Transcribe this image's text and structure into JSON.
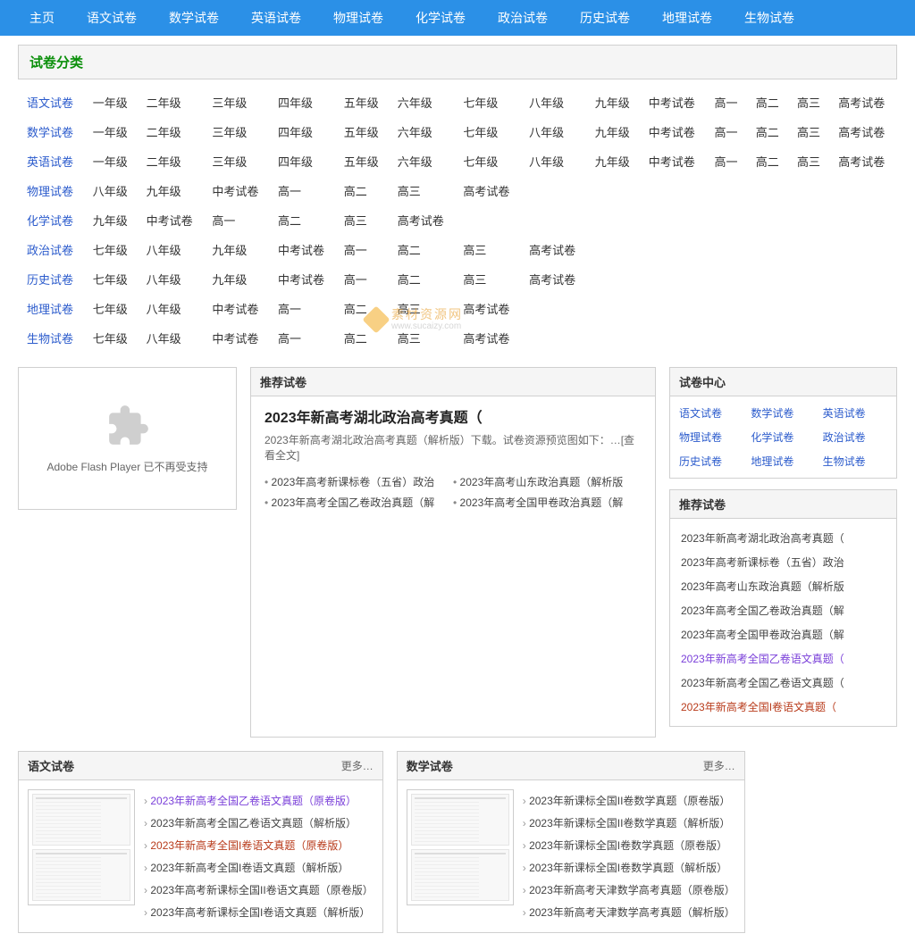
{
  "nav": [
    "主页",
    "语文试卷",
    "数学试卷",
    "英语试卷",
    "物理试卷",
    "化学试卷",
    "政治试卷",
    "历史试卷",
    "地理试卷",
    "生物试卷"
  ],
  "catTitle": "试卷分类",
  "catRows": [
    {
      "s": "语文试卷",
      "g": [
        "一年级",
        "二年级",
        "三年级",
        "四年级",
        "五年级",
        "六年级",
        "七年级",
        "八年级",
        "九年级",
        "中考试卷",
        "高一",
        "高二",
        "高三",
        "高考试卷"
      ]
    },
    {
      "s": "数学试卷",
      "g": [
        "一年级",
        "二年级",
        "三年级",
        "四年级",
        "五年级",
        "六年级",
        "七年级",
        "八年级",
        "九年级",
        "中考试卷",
        "高一",
        "高二",
        "高三",
        "高考试卷"
      ]
    },
    {
      "s": "英语试卷",
      "g": [
        "一年级",
        "二年级",
        "三年级",
        "四年级",
        "五年级",
        "六年级",
        "七年级",
        "八年级",
        "九年级",
        "中考试卷",
        "高一",
        "高二",
        "高三",
        "高考试卷"
      ]
    },
    {
      "s": "物理试卷",
      "g": [
        "八年级",
        "九年级",
        "中考试卷",
        "高一",
        "高二",
        "高三",
        "高考试卷"
      ]
    },
    {
      "s": "化学试卷",
      "g": [
        "九年级",
        "中考试卷",
        "高一",
        "高二",
        "高三",
        "高考试卷"
      ]
    },
    {
      "s": "政治试卷",
      "g": [
        "七年级",
        "八年级",
        "九年级",
        "中考试卷",
        "高一",
        "高二",
        "高三",
        "高考试卷"
      ]
    },
    {
      "s": "历史试卷",
      "g": [
        "七年级",
        "八年级",
        "九年级",
        "中考试卷",
        "高一",
        "高二",
        "高三",
        "高考试卷"
      ]
    },
    {
      "s": "地理试卷",
      "g": [
        "七年级",
        "八年级",
        "中考试卷",
        "高一",
        "高二",
        "高三",
        "高考试卷"
      ]
    },
    {
      "s": "生物试卷",
      "g": [
        "七年级",
        "八年级",
        "中考试卷",
        "高一",
        "高二",
        "高三",
        "高考试卷"
      ]
    }
  ],
  "flashText": "Adobe Flash Player 已不再受支持",
  "feature": {
    "head": "推荐试卷",
    "title": "2023年新高考湖北政治高考真题（",
    "desc": "2023年新高考湖北政治高考真题（解析版）下载。试卷资源预览图如下：…[查看全文]",
    "links": [
      "2023年高考新课标卷（五省）政治",
      "2023年高考山东政治真题（解析版",
      "2023年高考全国乙卷政治真题（解",
      "2023年高考全国甲卷政治真题（解"
    ]
  },
  "center": {
    "head": "试卷中心",
    "links": [
      "语文试卷",
      "数学试卷",
      "英语试卷",
      "物理试卷",
      "化学试卷",
      "政治试卷",
      "历史试卷",
      "地理试卷",
      "生物试卷"
    ]
  },
  "recHead": "推荐试卷",
  "recList": [
    {
      "t": "2023年新高考湖北政治高考真题（",
      "c": ""
    },
    {
      "t": "2023年高考新课标卷（五省）政治",
      "c": ""
    },
    {
      "t": "2023年高考山东政治真题（解析版",
      "c": ""
    },
    {
      "t": "2023年高考全国乙卷政治真题（解",
      "c": ""
    },
    {
      "t": "2023年高考全国甲卷政治真题（解",
      "c": ""
    },
    {
      "t": "2023年新高考全国乙卷语文真题（",
      "c": "hl1"
    },
    {
      "t": "2023年新高考全国乙卷语文真题（",
      "c": ""
    },
    {
      "t": "2023年新高考全国I卷语文真题（",
      "c": "hl2"
    }
  ],
  "more": "更多…",
  "yuwen": {
    "head": "语文试卷",
    "items": [
      {
        "t": "2023年新高考全国乙卷语文真题（原卷版）",
        "c": "hl1"
      },
      {
        "t": "2023年新高考全国乙卷语文真题（解析版）",
        "c": "n"
      },
      {
        "t": "2023年新高考全国I卷语文真题（原卷版）",
        "c": "hl2"
      },
      {
        "t": "2023年新高考全国I卷语文真题（解析版）",
        "c": "n"
      },
      {
        "t": "2023年高考新课标全国II卷语文真题（原卷版）",
        "c": "n"
      },
      {
        "t": "2023年高考新课标全国I卷语文真题（解析版）",
        "c": "n"
      }
    ]
  },
  "shuxue": {
    "head": "数学试卷",
    "items": [
      {
        "t": "2023年新课标全国II卷数学真题（原卷版）",
        "c": "n"
      },
      {
        "t": "2023年新课标全国II卷数学真题（解析版）",
        "c": "n"
      },
      {
        "t": "2023年新课标全国I卷数学真题（原卷版）",
        "c": "n"
      },
      {
        "t": "2023年新课标全国I卷数学真题（解析版）",
        "c": "n"
      },
      {
        "t": "2023年新高考天津数学高考真题（原卷版）",
        "c": "n"
      },
      {
        "t": "2023年新高考天津数学高考真题（解析版）",
        "c": "n"
      }
    ]
  },
  "wm": {
    "a": "素材资源网",
    "b": "www.sucaizy.com"
  }
}
